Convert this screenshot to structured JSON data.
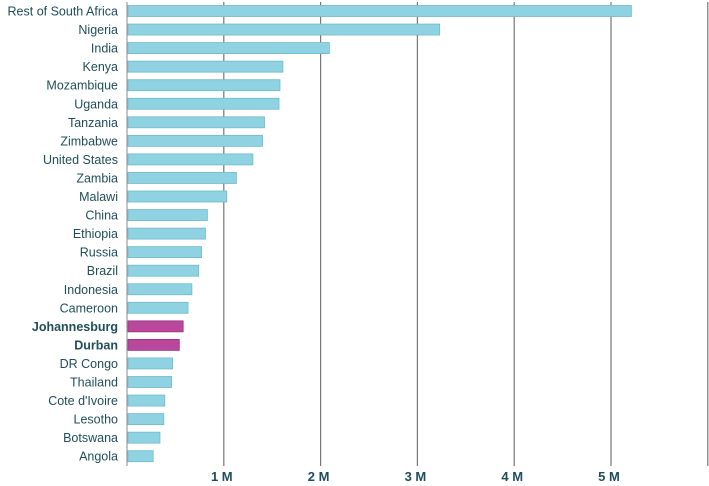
{
  "chart_data": {
    "type": "bar",
    "orientation": "horizontal",
    "title": "",
    "xlabel": "",
    "ylabel": "",
    "xlim": [
      0,
      6000000
    ],
    "grid": true,
    "categories": [
      "Rest of South Africa",
      "Nigeria",
      "India",
      "Kenya",
      "Mozambique",
      "Uganda",
      "Tanzania",
      "Zimbabwe",
      "United States",
      "Zambia",
      "Malawi",
      "China",
      "Ethiopia",
      "Russia",
      "Brazil",
      "Indonesia",
      "Cameroon",
      "Johannesburg",
      "Durban",
      "DR Congo",
      "Thailand",
      "Cote d'Ivoire",
      "Lesotho",
      "Botswana",
      "Angola"
    ],
    "values": [
      5200000,
      3220000,
      2080000,
      1600000,
      1570000,
      1560000,
      1410000,
      1390000,
      1290000,
      1120000,
      1020000,
      820000,
      800000,
      760000,
      730000,
      660000,
      620000,
      570000,
      530000,
      460000,
      450000,
      380000,
      370000,
      330000,
      260000
    ],
    "highlighted": [
      "Johannesburg",
      "Durban"
    ],
    "ticks": [
      {
        "value": 1000000,
        "label": "1 M"
      },
      {
        "value": 2000000,
        "label": "2 M"
      },
      {
        "value": 3000000,
        "label": "3 M"
      },
      {
        "value": 4000000,
        "label": "4 M"
      },
      {
        "value": 5000000,
        "label": "5 M"
      }
    ],
    "colors": {
      "bar": "#8fd3e2",
      "bar_edge": "#6fb9cc",
      "highlight": "#b9479b",
      "highlight_edge": "#9a3580",
      "text": "#1f4e5a"
    }
  }
}
